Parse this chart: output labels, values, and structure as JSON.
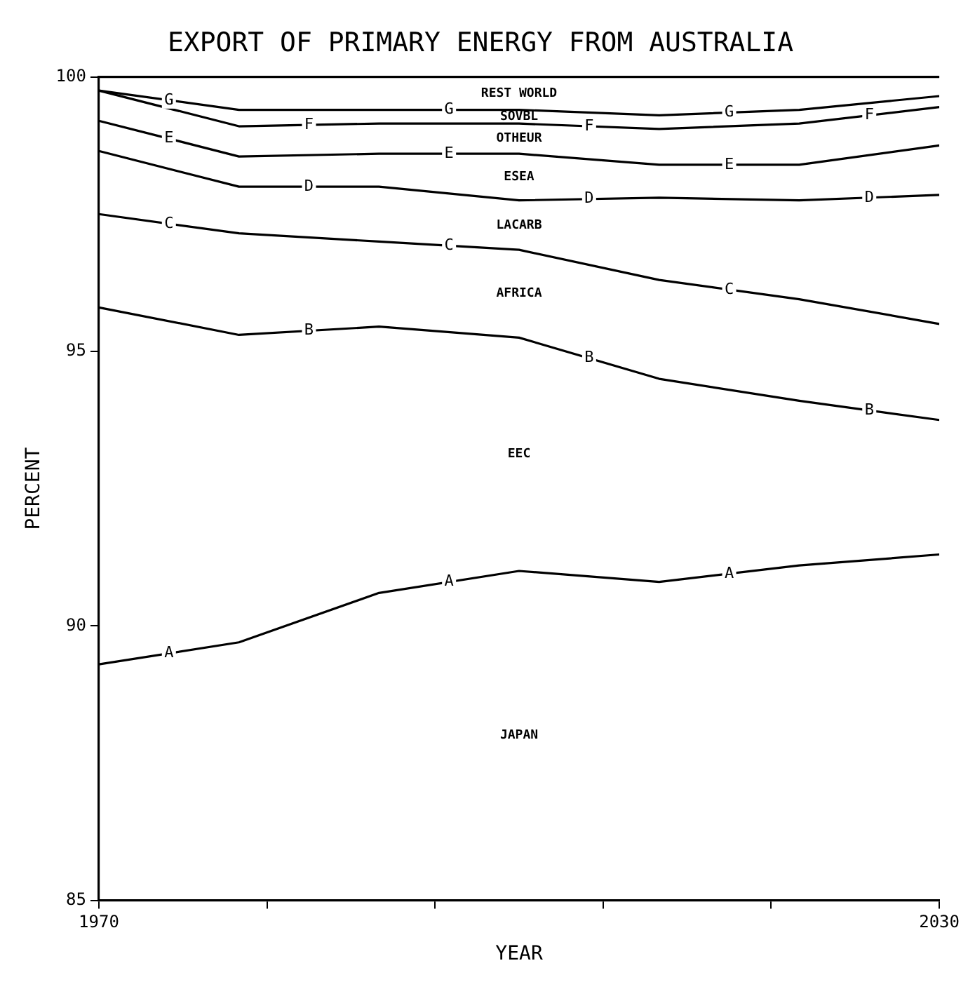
{
  "chart_data": {
    "type": "line",
    "title": "EXPORT OF PRIMARY ENERGY FROM AUSTRALIA",
    "xlabel": "YEAR",
    "ylabel": "PERCENT",
    "x": [
      1970,
      1980,
      1990,
      2000,
      2010,
      2020,
      2030
    ],
    "series": [
      {
        "name": "A",
        "color": "#000000",
        "values": [
          89.3,
          89.7,
          90.6,
          91.0,
          90.8,
          91.1,
          91.3
        ]
      },
      {
        "name": "B",
        "color": "#000000",
        "values": [
          95.8,
          95.3,
          95.45,
          95.25,
          94.5,
          94.1,
          93.75
        ]
      },
      {
        "name": "C",
        "color": "#000000",
        "values": [
          97.5,
          97.15,
          97.0,
          96.85,
          96.3,
          95.95,
          95.5
        ]
      },
      {
        "name": "D",
        "color": "#000000",
        "values": [
          98.65,
          98.0,
          98.0,
          97.75,
          97.8,
          97.75,
          97.85
        ]
      },
      {
        "name": "E",
        "color": "#000000",
        "values": [
          99.2,
          98.55,
          98.6,
          98.6,
          98.4,
          98.4,
          98.75
        ]
      },
      {
        "name": "F",
        "color": "#000000",
        "values": [
          99.75,
          99.1,
          99.15,
          99.15,
          99.05,
          99.15,
          99.45
        ]
      },
      {
        "name": "G",
        "color": "#000000",
        "values": [
          99.75,
          99.4,
          99.4,
          99.4,
          99.3,
          99.4,
          99.65
        ]
      }
    ],
    "annotations": [
      "REST WORLD",
      "SOVBL",
      "OTHEUR",
      "ESEA",
      "LACARB",
      "AFRICA",
      "EEC",
      "JAPAN"
    ],
    "xlim": [
      1970,
      2030
    ],
    "ylim": [
      85,
      100
    ],
    "xticks": [
      1970,
      {
        "value": 1982,
        "label": null
      },
      {
        "value": 1994,
        "label": null
      },
      {
        "value": 2006,
        "label": null
      },
      {
        "value": 2018,
        "label": null
      },
      2030
    ],
    "yticks": [
      85,
      90,
      95,
      100
    ],
    "grid": false,
    "legend": false,
    "marker": "none",
    "line_style": "solid"
  }
}
